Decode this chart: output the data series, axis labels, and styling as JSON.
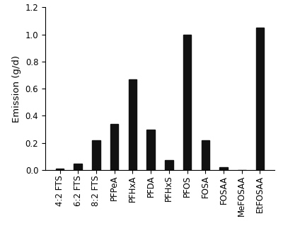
{
  "categories": [
    "4:2 FTS",
    "6:2 FTS",
    "8:2 FTS",
    "PFPeA",
    "PFHxA",
    "PFDA",
    "PFHxS",
    "PFOS",
    "FOSA",
    "FOSAA",
    "MeFOSAA",
    "EtFOSAA"
  ],
  "values": [
    0.01,
    0.045,
    0.22,
    0.34,
    0.67,
    0.3,
    0.075,
    1.0,
    0.22,
    0.02,
    0.003,
    1.05
  ],
  "bar_color": "#111111",
  "ylabel": "Emission (g/d)",
  "ylim": [
    0,
    1.2
  ],
  "yticks": [
    0.0,
    0.2,
    0.4,
    0.6,
    0.8,
    1.0,
    1.2
  ],
  "background_color": "#ffffff",
  "tick_fontsize": 8.5,
  "label_fontsize": 9.5,
  "bar_width": 0.45
}
